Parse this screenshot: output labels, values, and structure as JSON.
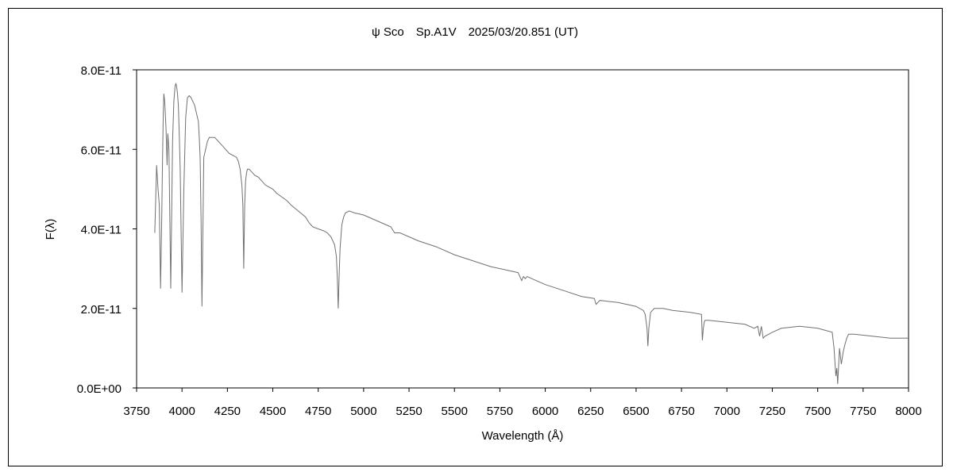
{
  "chart_data": {
    "type": "line",
    "title": "ψ Sco　Sp.A1V　2025/03/20.851 (UT)",
    "xlabel": "Wavelength (Å)",
    "ylabel": "F(λ)",
    "xlim": [
      3750,
      8000
    ],
    "ylim": [
      0,
      8e-11
    ],
    "xticks": [
      "3750",
      "4000",
      "4250",
      "4500",
      "4750",
      "5000",
      "5250",
      "5500",
      "5750",
      "6000",
      "6250",
      "6500",
      "6750",
      "7000",
      "7250",
      "7500",
      "7750",
      "8000"
    ],
    "yticks": [
      "0.0E+00",
      "2.0E-11",
      "4.0E-11",
      "6.0E-11",
      "8.0E-11"
    ],
    "grid": false,
    "line_color": "#707070",
    "series": [
      {
        "x": [
          3850,
          3860,
          3868,
          3875,
          3882,
          3888,
          3893,
          3897,
          3900,
          3905,
          3912,
          3918,
          3922,
          3928,
          3933,
          3938,
          3942,
          3948,
          3955,
          3962,
          3966,
          3970,
          3975,
          3980,
          3985,
          3990,
          4000,
          4010,
          4020,
          4030,
          4040,
          4050,
          4060,
          4070,
          4080,
          4090,
          4095,
          4100,
          4105,
          4110,
          4120,
          4130,
          4140,
          4150,
          4160,
          4180,
          4200,
          4220,
          4240,
          4260,
          4280,
          4300,
          4310,
          4320,
          4330,
          4335,
          4340,
          4345,
          4350,
          4355,
          4360,
          4370,
          4380,
          4390,
          4400,
          4420,
          4440,
          4460,
          4480,
          4500,
          4520,
          4550,
          4580,
          4600,
          4640,
          4680,
          4700,
          4720,
          4750,
          4780,
          4800,
          4820,
          4840,
          4850,
          4855,
          4860,
          4865,
          4870,
          4875,
          4880,
          4890,
          4900,
          4920,
          4950,
          5000,
          5050,
          5100,
          5150,
          5170,
          5200,
          5250,
          5300,
          5400,
          5500,
          5600,
          5700,
          5800,
          5850,
          5870,
          5880,
          5890,
          5900,
          5950,
          6000,
          6100,
          6200,
          6270,
          6280,
          6300,
          6400,
          6500,
          6540,
          6550,
          6560,
          6565,
          6570,
          6580,
          6600,
          6650,
          6700,
          6800,
          6860,
          6865,
          6870,
          6875,
          6880,
          6900,
          7000,
          7100,
          7150,
          7170,
          7180,
          7190,
          7200,
          7210,
          7250,
          7300,
          7400,
          7500,
          7580,
          7590,
          7600,
          7605,
          7610,
          7620,
          7630,
          7640,
          7650,
          7660,
          7670,
          7700,
          7800,
          7900,
          8000
        ],
        "values": [
          3.9e-11,
          5.6e-11,
          5e-11,
          4.6e-11,
          2.5e-11,
          4.2e-11,
          5.8e-11,
          6.9e-11,
          7.4e-11,
          7.2e-11,
          6.5e-11,
          5.6e-11,
          6.4e-11,
          6e-11,
          4.2e-11,
          2.5e-11,
          4e-11,
          6.2e-11,
          7.2e-11,
          7.6e-11,
          7.65e-11,
          7.6e-11,
          7.4e-11,
          7.1e-11,
          6.4e-11,
          5.5e-11,
          2.4e-11,
          5e-11,
          6.8e-11,
          7.3e-11,
          7.35e-11,
          7.3e-11,
          7.2e-11,
          7.1e-11,
          6.9e-11,
          6.7e-11,
          6.3e-11,
          5.8e-11,
          4.2e-11,
          2.05e-11,
          5.8e-11,
          6e-11,
          6.2e-11,
          6.3e-11,
          6.3e-11,
          6.3e-11,
          6.2e-11,
          6.1e-11,
          6e-11,
          5.9e-11,
          5.85e-11,
          5.8e-11,
          5.7e-11,
          5.5e-11,
          5.1e-11,
          4.6e-11,
          3e-11,
          4.6e-11,
          5.2e-11,
          5.4e-11,
          5.5e-11,
          5.5e-11,
          5.45e-11,
          5.4e-11,
          5.35e-11,
          5.3e-11,
          5.2e-11,
          5.1e-11,
          5.05e-11,
          5e-11,
          4.9e-11,
          4.8e-11,
          4.7e-11,
          4.6e-11,
          4.45e-11,
          4.3e-11,
          4.15e-11,
          4.05e-11,
          4e-11,
          3.95e-11,
          3.9e-11,
          3.8e-11,
          3.6e-11,
          3.3e-11,
          2.8e-11,
          2e-11,
          2.8e-11,
          3.5e-11,
          3.8e-11,
          4.1e-11,
          4.3e-11,
          4.4e-11,
          4.45e-11,
          4.4e-11,
          4.35e-11,
          4.25e-11,
          4.15e-11,
          4.05e-11,
          3.9e-11,
          3.9e-11,
          3.8e-11,
          3.7e-11,
          3.55e-11,
          3.35e-11,
          3.2e-11,
          3.05e-11,
          2.95e-11,
          2.9e-11,
          2.7e-11,
          2.8e-11,
          2.75e-11,
          2.8e-11,
          2.7e-11,
          2.6e-11,
          2.45e-11,
          2.3e-11,
          2.25e-11,
          2.1e-11,
          2.2e-11,
          2.15e-11,
          2.05e-11,
          1.95e-11,
          1.85e-11,
          1.5e-11,
          1.05e-11,
          1.5e-11,
          1.9e-11,
          2e-11,
          2e-11,
          1.95e-11,
          1.9e-11,
          1.85e-11,
          1.2e-11,
          1.5e-11,
          1.65e-11,
          1.7e-11,
          1.7e-11,
          1.65e-11,
          1.6e-11,
          1.5e-11,
          1.55e-11,
          1.3e-11,
          1.55e-11,
          1.25e-11,
          1.3e-11,
          1.4e-11,
          1.5e-11,
          1.55e-11,
          1.5e-11,
          1.4e-11,
          1e-11,
          3e-12,
          5e-12,
          1e-12,
          1e-11,
          6e-12,
          9e-12,
          1.1e-11,
          1.25e-11,
          1.35e-11,
          1.35e-11,
          1.3e-11,
          1.25e-11,
          1.25e-11
        ]
      }
    ]
  }
}
